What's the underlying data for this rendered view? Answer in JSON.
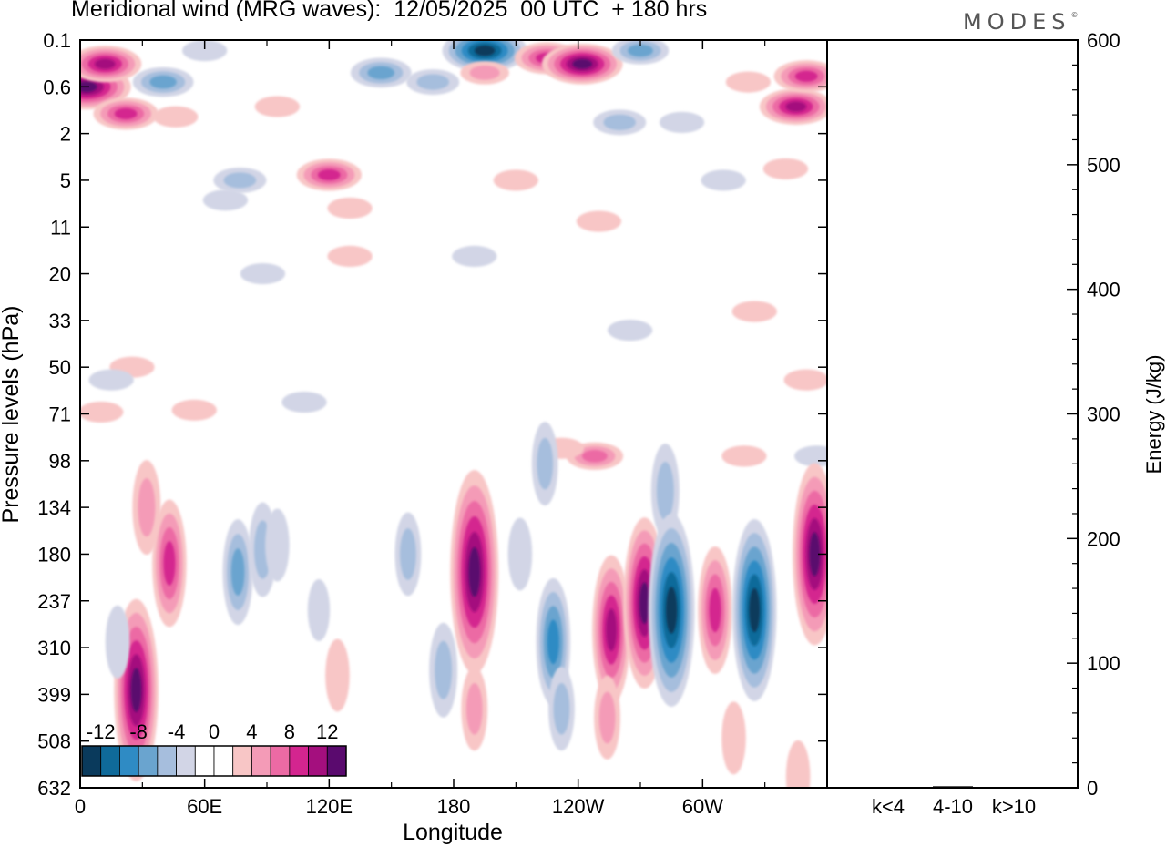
{
  "header": {
    "title": "Meridional wind (MRG waves):  12/05/2025  00 UTC  + 180 hrs",
    "logo": "MODES",
    "logo_mark": "©"
  },
  "chart_data": [
    {
      "type": "heatmap",
      "title": "Meridional wind (MRG waves):  12/05/2025  00 UTC  + 180 hrs",
      "xlabel": "Longitude",
      "ylabel": "Pressure levels (hPa)",
      "x_ticks": [
        "0",
        "60E",
        "120E",
        "180",
        "120W",
        "60W"
      ],
      "y_ticks": [
        "0.1",
        "0.6",
        "2",
        "5",
        "11",
        "20",
        "33",
        "50",
        "71",
        "98",
        "134",
        "180",
        "237",
        "310",
        "399",
        "508",
        "632"
      ],
      "colorbar": {
        "tick_labels": [
          "-12",
          "-8",
          "-4",
          "0",
          "4",
          "8",
          "12"
        ],
        "colors": [
          "#0a3a5c",
          "#0f6a9a",
          "#2f8bc4",
          "#6aa4cf",
          "#a6bedd",
          "#d2d5e6",
          "#ffffff",
          "#ffffff",
          "#f8c6c6",
          "#f49bb7",
          "#ec6aa4",
          "#d4258f",
          "#a40f7e",
          "#5a0a6e"
        ]
      },
      "features": [
        {
          "lon": 3,
          "level": 0.6,
          "value": 14
        },
        {
          "lon": 12,
          "level": 0.25,
          "value": 10
        },
        {
          "lon": 22,
          "level": 1.2,
          "value": 8
        },
        {
          "lon": 40,
          "level": 0.5,
          "value": -7
        },
        {
          "lon": 60,
          "level": 0.15,
          "value": -3
        },
        {
          "lon": 46,
          "level": 1.3,
          "value": 3
        },
        {
          "lon": 95,
          "level": 1.0,
          "value": 3
        },
        {
          "lon": 145,
          "level": 0.35,
          "value": -7
        },
        {
          "lon": 170,
          "level": 0.5,
          "value": -5
        },
        {
          "lon": 195,
          "level": 0.15,
          "value": -13
        },
        {
          "lon": 195,
          "level": 0.35,
          "value": 4
        },
        {
          "lon": 225,
          "level": 0.2,
          "value": 8
        },
        {
          "lon": 242,
          "level": 0.25,
          "value": 12
        },
        {
          "lon": 260,
          "level": 1.5,
          "value": -5
        },
        {
          "lon": 270,
          "level": 0.15,
          "value": -6
        },
        {
          "lon": 290,
          "level": 1.5,
          "value": -3
        },
        {
          "lon": 345,
          "level": 1.0,
          "value": 10
        },
        {
          "lon": 350,
          "level": 0.4,
          "value": 8
        },
        {
          "lon": 322,
          "level": 0.5,
          "value": 3
        },
        {
          "lon": 77,
          "level": 5,
          "value": -5
        },
        {
          "lon": 70,
          "level": 7,
          "value": -3
        },
        {
          "lon": 120,
          "level": 4.5,
          "value": 8
        },
        {
          "lon": 130,
          "level": 8,
          "value": 3
        },
        {
          "lon": 130,
          "level": 16,
          "value": 3
        },
        {
          "lon": 88,
          "level": 20,
          "value": -3
        },
        {
          "lon": 190,
          "level": 16,
          "value": -3
        },
        {
          "lon": 210,
          "level": 5,
          "value": 3
        },
        {
          "lon": 250,
          "level": 10,
          "value": 3
        },
        {
          "lon": 310,
          "level": 5,
          "value": -3
        },
        {
          "lon": 340,
          "level": 4,
          "value": 3
        },
        {
          "lon": 325,
          "level": 30,
          "value": 3
        },
        {
          "lon": 265,
          "level": 36,
          "value": -3
        },
        {
          "lon": 25,
          "level": 50,
          "value": 3
        },
        {
          "lon": 55,
          "level": 69,
          "value": 3
        },
        {
          "lon": 10,
          "level": 70,
          "value": 3
        },
        {
          "lon": 15,
          "level": 55,
          "value": -3
        },
        {
          "lon": 350,
          "level": 55,
          "value": 3
        },
        {
          "lon": 108,
          "level": 65,
          "value": -3
        },
        {
          "lon": 248,
          "level": 95,
          "value": 6
        },
        {
          "lon": 232,
          "level": 90,
          "value": 3
        },
        {
          "lon": 224,
          "level": 100,
          "value": -4
        },
        {
          "lon": 282,
          "level": 120,
          "value": -5
        },
        {
          "lon": 320,
          "level": 95,
          "value": 3
        },
        {
          "lon": 355,
          "level": 95,
          "value": -3
        },
        {
          "lon": 32,
          "level": 134,
          "value": 5
        },
        {
          "lon": 27,
          "level": 390,
          "value": 13
        },
        {
          "lon": 18,
          "level": 300,
          "value": -3
        },
        {
          "lon": 43,
          "level": 190,
          "value": 8
        },
        {
          "lon": 76,
          "level": 200,
          "value": -6
        },
        {
          "lon": 88,
          "level": 175,
          "value": -5
        },
        {
          "lon": 95,
          "level": 170,
          "value": -3
        },
        {
          "lon": 115,
          "level": 250,
          "value": -2
        },
        {
          "lon": 158,
          "level": 180,
          "value": -4
        },
        {
          "lon": 175,
          "level": 350,
          "value": -5
        },
        {
          "lon": 190,
          "level": 200,
          "value": 15
        },
        {
          "lon": 212,
          "level": 180,
          "value": -3
        },
        {
          "lon": 228,
          "level": 300,
          "value": -8
        },
        {
          "lon": 256,
          "level": 280,
          "value": 10
        },
        {
          "lon": 272,
          "level": 240,
          "value": 12
        },
        {
          "lon": 285,
          "level": 250,
          "value": -14
        },
        {
          "lon": 306,
          "level": 250,
          "value": 8
        },
        {
          "lon": 325,
          "level": 250,
          "value": -13
        },
        {
          "lon": 354,
          "level": 180,
          "value": 13
        },
        {
          "lon": 315,
          "level": 500,
          "value": 3
        },
        {
          "lon": 346,
          "level": 600,
          "value": 3
        },
        {
          "lon": 254,
          "level": 450,
          "value": 4
        },
        {
          "lon": 232,
          "level": 430,
          "value": -4
        },
        {
          "lon": 190,
          "level": 430,
          "value": 4
        },
        {
          "lon": 124,
          "level": 360,
          "value": 3
        }
      ]
    },
    {
      "type": "bar",
      "categories": [
        "k<4",
        "4-10",
        "k>10"
      ],
      "values": [
        0.3,
        1.2,
        0.2
      ],
      "ylabel": "Energy (J/kg)",
      "ylim": [
        0,
        600
      ],
      "y_ticks": [
        "0",
        "100",
        "200",
        "300",
        "400",
        "500",
        "600"
      ],
      "color": "#000000"
    }
  ]
}
